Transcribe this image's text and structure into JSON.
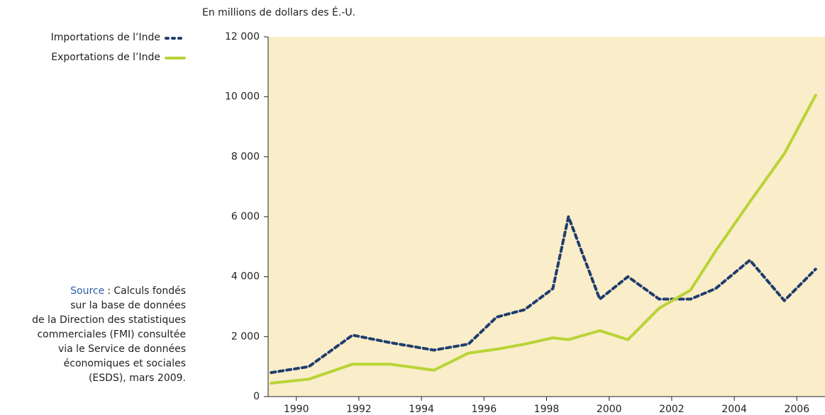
{
  "chart_data": {
    "type": "line",
    "y_axis_label": "En millions de dollars des É.-U.",
    "x": [
      1989.2,
      1990.4,
      1991.8,
      1993.0,
      1994.4,
      1995.5,
      1996.4,
      1997.3,
      1998.2,
      1998.7,
      1999.7,
      2000.6,
      2001.6,
      2002.6,
      2003.4,
      2004.5,
      2005.6,
      2006.6
    ],
    "series": [
      {
        "name": "Importations de l’Inde",
        "color": "#1f3d6e",
        "dashed": true,
        "values": [
          800,
          1000,
          2050,
          1800,
          1550,
          1750,
          2650,
          2900,
          3600,
          6000,
          3250,
          4000,
          3250,
          3250,
          3600,
          4550,
          3200,
          4250
        ]
      },
      {
        "name": "Exportations de l’Inde",
        "color": "#b8d435",
        "dashed": false,
        "values": [
          450,
          580,
          1080,
          1080,
          880,
          1450,
          1580,
          1750,
          1960,
          1900,
          2200,
          1900,
          2950,
          3550,
          4850,
          6500,
          8100,
          10050
        ]
      }
    ],
    "xlim": [
      1989.1,
      2006.9
    ],
    "xticks": [
      1990,
      1992,
      1994,
      1996,
      1998,
      2000,
      2002,
      2004,
      2006
    ],
    "ylim": [
      0,
      12000
    ],
    "yticks": [
      0,
      {
        "value": 2000,
        "label": "2 000"
      },
      {
        "value": 4000,
        "label": "4 000"
      },
      {
        "value": 6000,
        "label": "6 000"
      },
      {
        "value": 8000,
        "label": "8 000"
      },
      {
        "value": 10000,
        "label": "10 000"
      },
      {
        "value": 12000,
        "label": "12 000"
      }
    ],
    "plot_background": "#faedc9",
    "legend_position": "top-left",
    "source_label": "Source",
    "source_lines": [
      ": Calculs fondés",
      "sur la base de données",
      "de la Direction des statistiques",
      "commerciales (FMI) consultée",
      "via le Service de données",
      "économiques et sociales",
      "(ESDS), mars 2009."
    ]
  }
}
